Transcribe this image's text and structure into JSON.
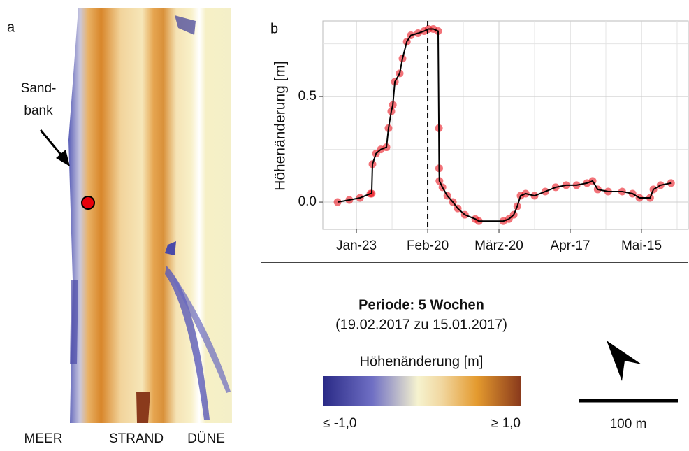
{
  "chart_data": {
    "type": "line",
    "panel_label": "b",
    "ylabel": "Höhenänderung [m]",
    "x": [
      15.6,
      20.2,
      24.4,
      28.5,
      29.0,
      29.3,
      30.7,
      32.6,
      34.8,
      35.6,
      36.7,
      37.3,
      38.1,
      40.0,
      41.1,
      42.8,
      44.4,
      47.2,
      49.6,
      51.3,
      53.2,
      55.1,
      55.4,
      55.5,
      55.6,
      56.8,
      58.7,
      60.9,
      62.8,
      65.6,
      69.7,
      71.1,
      80.7,
      82.9,
      84.8,
      86.2,
      87.5,
      89.5,
      93.0,
      97.2,
      101.3,
      105.4,
      109.5,
      113.6,
      115.8,
      117.8,
      121.9,
      127.4,
      131.5,
      134.2,
      138.4,
      139.7,
      142.5,
      146.6
    ],
    "values": [
      0.0,
      0.01,
      0.02,
      0.04,
      0.04,
      0.18,
      0.23,
      0.25,
      0.26,
      0.35,
      0.43,
      0.46,
      0.57,
      0.61,
      0.68,
      0.76,
      0.79,
      0.8,
      0.81,
      0.82,
      0.82,
      0.81,
      0.35,
      0.16,
      0.1,
      0.07,
      0.03,
      0.0,
      -0.03,
      -0.06,
      -0.08,
      -0.09,
      -0.09,
      -0.08,
      -0.06,
      -0.02,
      0.03,
      0.04,
      0.03,
      0.05,
      0.07,
      0.08,
      0.08,
      0.09,
      0.1,
      0.06,
      0.05,
      0.05,
      0.04,
      0.02,
      0.02,
      0.06,
      0.08,
      0.09
    ],
    "color": "#e8000b",
    "line_color": "#000000",
    "xlim": [
      9.8,
      153.4
    ],
    "xticks": [
      {
        "value": 23,
        "label": "Jan-23"
      },
      {
        "value": 51,
        "label": "Feb-20"
      },
      {
        "value": 79,
        "label": "März-20"
      },
      {
        "value": 107,
        "label": "Apr-17"
      },
      {
        "value": 135,
        "label": "Mai-15"
      }
    ],
    "xminorticks": [
      37,
      65,
      93,
      121,
      149
    ],
    "ylim": [
      -0.129,
      0.858
    ],
    "yticks": [
      {
        "value": 0,
        "label": "0.0"
      },
      0.5
    ],
    "yminorticks": [
      0.25,
      0.75
    ],
    "vline": 51,
    "grid": true
  },
  "panel_a": {
    "label": "a",
    "annotation_lines": [
      "Sand-",
      "bank"
    ],
    "bottom_labels": [
      "MEER",
      "STRAND",
      "DÜNE"
    ]
  },
  "legend": {
    "title": "Periode: 5 Wochen",
    "subtitle": "(19.02.2017 zu 15.01.2017)",
    "colorbar_label": "Höhenänderung [m]",
    "min_label": "≤ -1,0",
    "max_label": "≥ 1,0"
  },
  "scale_bar": {
    "label": "100 m"
  }
}
